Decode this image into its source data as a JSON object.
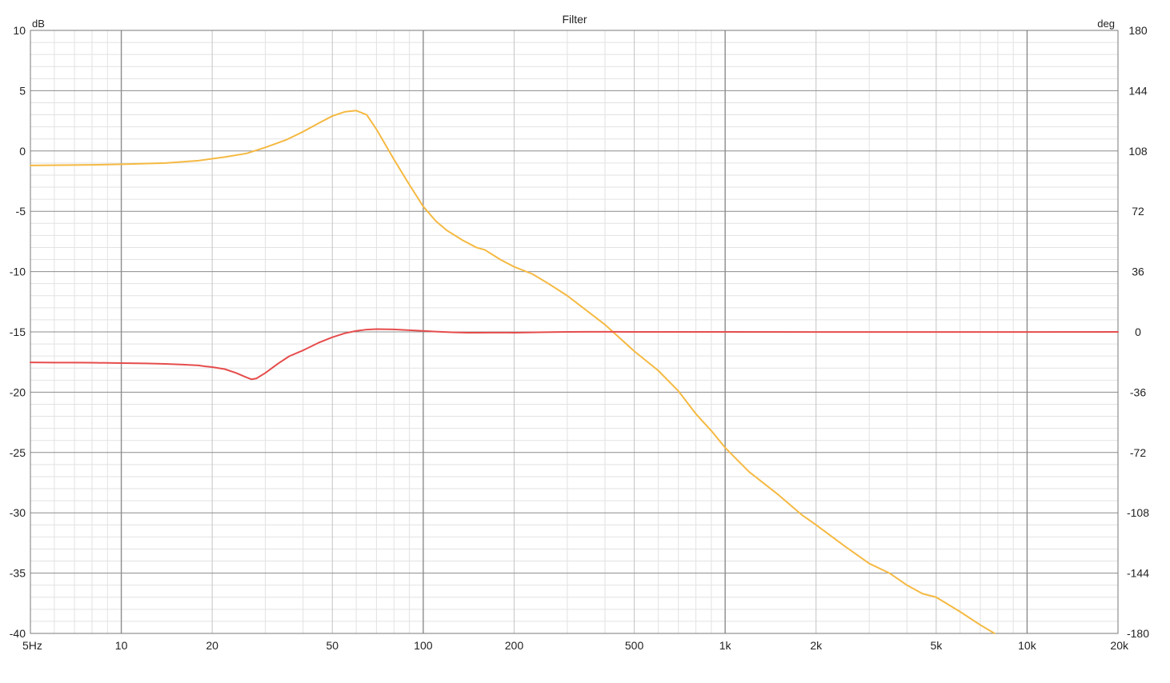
{
  "chart_data": {
    "type": "line",
    "title": "Filter",
    "ylabel_left": "dB",
    "ylabel_right": "deg",
    "x_scale": "log",
    "xlim": [
      5,
      20000
    ],
    "ylim_left": [
      -40,
      10
    ],
    "ylim_right": [
      -180,
      180
    ],
    "grid": true,
    "x_ticks": [
      {
        "value": 5,
        "label": "5Hz"
      },
      {
        "value": 10,
        "label": "10"
      },
      {
        "value": 20,
        "label": "20"
      },
      {
        "value": 50,
        "label": "50"
      },
      {
        "value": 100,
        "label": "100"
      },
      {
        "value": 200,
        "label": "200"
      },
      {
        "value": 500,
        "label": "500"
      },
      {
        "value": 1000,
        "label": "1k"
      },
      {
        "value": 2000,
        "label": "2k"
      },
      {
        "value": 5000,
        "label": "5k"
      },
      {
        "value": 10000,
        "label": "10k"
      },
      {
        "value": 20000,
        "label": "20k"
      }
    ],
    "y_ticks_left": [
      {
        "value": 10,
        "label": "10"
      },
      {
        "value": 5,
        "label": "5"
      },
      {
        "value": 0,
        "label": "0"
      },
      {
        "value": -5,
        "label": "-5"
      },
      {
        "value": -10,
        "label": "-10"
      },
      {
        "value": -15,
        "label": "-15"
      },
      {
        "value": -20,
        "label": "-20"
      },
      {
        "value": -25,
        "label": "-25"
      },
      {
        "value": -30,
        "label": "-30"
      },
      {
        "value": -35,
        "label": "-35"
      },
      {
        "value": -40,
        "label": "-40"
      }
    ],
    "y_ticks_right": [
      {
        "value": 180,
        "label": "180"
      },
      {
        "value": 144,
        "label": "144"
      },
      {
        "value": 108,
        "label": "108"
      },
      {
        "value": 72,
        "label": "72"
      },
      {
        "value": 36,
        "label": "36"
      },
      {
        "value": 0,
        "label": "0"
      },
      {
        "value": -36,
        "label": "-36"
      },
      {
        "value": -72,
        "label": "-72"
      },
      {
        "value": -108,
        "label": "-108"
      },
      {
        "value": -144,
        "label": "-144"
      },
      {
        "value": -180,
        "label": "-180"
      }
    ],
    "series": [
      {
        "color": "#f5b942",
        "axis": "left",
        "points": [
          [
            5,
            -1.2
          ],
          [
            8,
            -1.15
          ],
          [
            10,
            -1.1
          ],
          [
            14,
            -1.0
          ],
          [
            18,
            -0.8
          ],
          [
            22,
            -0.5
          ],
          [
            26,
            -0.2
          ],
          [
            30,
            0.3
          ],
          [
            35,
            0.9
          ],
          [
            40,
            1.6
          ],
          [
            45,
            2.3
          ],
          [
            50,
            2.9
          ],
          [
            55,
            3.25
          ],
          [
            60,
            3.35
          ],
          [
            65,
            3.0
          ],
          [
            70,
            1.8
          ],
          [
            80,
            -0.7
          ],
          [
            90,
            -2.8
          ],
          [
            100,
            -4.6
          ],
          [
            110,
            -5.8
          ],
          [
            120,
            -6.6
          ],
          [
            135,
            -7.4
          ],
          [
            150,
            -8.0
          ],
          [
            160,
            -8.2
          ],
          [
            180,
            -9.0
          ],
          [
            200,
            -9.6
          ],
          [
            230,
            -10.2
          ],
          [
            260,
            -11.0
          ],
          [
            300,
            -12.0
          ],
          [
            400,
            -14.4
          ],
          [
            500,
            -16.6
          ],
          [
            600,
            -18.2
          ],
          [
            700,
            -19.9
          ],
          [
            800,
            -21.8
          ],
          [
            900,
            -23.2
          ],
          [
            1000,
            -24.6
          ],
          [
            1200,
            -26.6
          ],
          [
            1500,
            -28.5
          ],
          [
            1800,
            -30.2
          ],
          [
            2000,
            -31.0
          ],
          [
            2500,
            -32.8
          ],
          [
            3000,
            -34.2
          ],
          [
            3500,
            -35.0
          ],
          [
            4000,
            -36.0
          ],
          [
            4500,
            -36.7
          ],
          [
            5000,
            -37.0
          ],
          [
            6000,
            -38.2
          ],
          [
            7000,
            -39.3
          ],
          [
            7800,
            -40.0
          ]
        ]
      },
      {
        "color": "#e64c4c",
        "axis": "right",
        "points": [
          [
            5,
            -18.2
          ],
          [
            6,
            -18.3
          ],
          [
            7,
            -18.3
          ],
          [
            8,
            -18.4
          ],
          [
            10,
            -18.6
          ],
          [
            12,
            -18.8
          ],
          [
            14,
            -19.1
          ],
          [
            16,
            -19.5
          ],
          [
            18,
            -20.0
          ],
          [
            19,
            -20.6
          ],
          [
            20,
            -21.0
          ],
          [
            22,
            -22.2
          ],
          [
            24,
            -24.5
          ],
          [
            26,
            -27.2
          ],
          [
            27,
            -28.3
          ],
          [
            28,
            -27.8
          ],
          [
            30,
            -24.5
          ],
          [
            33,
            -19.0
          ],
          [
            36,
            -14.5
          ],
          [
            40,
            -11.0
          ],
          [
            45,
            -6.5
          ],
          [
            50,
            -3.2
          ],
          [
            55,
            -0.8
          ],
          [
            60,
            0.6
          ],
          [
            65,
            1.4
          ],
          [
            70,
            1.7
          ],
          [
            80,
            1.5
          ],
          [
            90,
            1.0
          ],
          [
            100,
            0.6
          ],
          [
            110,
            0.2
          ],
          [
            125,
            -0.25
          ],
          [
            140,
            -0.5
          ],
          [
            150,
            -0.45
          ],
          [
            170,
            -0.4
          ],
          [
            200,
            -0.45
          ],
          [
            250,
            -0.2
          ],
          [
            300,
            0.0
          ],
          [
            350,
            0.05
          ],
          [
            400,
            0.05
          ],
          [
            500,
            0.02
          ],
          [
            700,
            0.0
          ],
          [
            1000,
            0.0
          ],
          [
            2000,
            -0.05
          ],
          [
            5000,
            -0.05
          ],
          [
            10000,
            -0.05
          ],
          [
            20000,
            0.0
          ]
        ]
      }
    ]
  }
}
